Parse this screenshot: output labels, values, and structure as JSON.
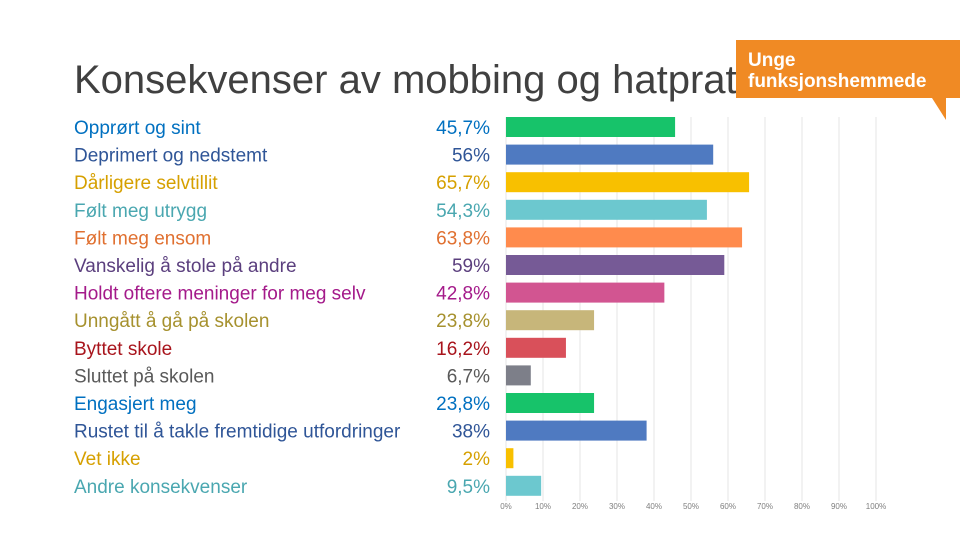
{
  "title": "Konsekvenser av mobbing og hatprat",
  "logo": {
    "line1": "Unge",
    "line2": "funksjonshemmede",
    "color": "#f08a24"
  },
  "chart_data": {
    "type": "bar",
    "orientation": "horizontal",
    "title": "Konsekvenser av mobbing og hatprat",
    "xlim": [
      0,
      100
    ],
    "xticks": [
      "0%",
      "10%",
      "20%",
      "30%",
      "40%",
      "50%",
      "60%",
      "70%",
      "80%",
      "90%",
      "100%"
    ],
    "grid": true,
    "rows": [
      {
        "label": "Opprørt og sint",
        "value": 45.7,
        "display": "45,7%",
        "bar_color": "#17c36a",
        "label_color": "#0070c0"
      },
      {
        "label": "Deprimert og nedstemt",
        "value": 56,
        "display": "56%",
        "bar_color": "#4f7ac1",
        "label_color": "#2f5597"
      },
      {
        "label": "Dårligere selvtillit",
        "value": 65.7,
        "display": "65,7%",
        "bar_color": "#f8c000",
        "label_color": "#d6a000"
      },
      {
        "label": "Følt meg utrygg",
        "value": 54.3,
        "display": "54,3%",
        "bar_color": "#6cc8cf",
        "label_color": "#4aa7b0"
      },
      {
        "label": "Følt meg ensom",
        "value": 63.8,
        "display": "63,8%",
        "bar_color": "#ff8b4d",
        "label_color": "#e07030"
      },
      {
        "label": "Vanskelig å stole på andre",
        "value": 59,
        "display": "59%",
        "bar_color": "#765a96",
        "label_color": "#5b3f7e"
      },
      {
        "label": "Holdt oftere meninger for meg selv",
        "value": 42.8,
        "display": "42,8%",
        "bar_color": "#d25591",
        "label_color": "#a41a8a"
      },
      {
        "label": "Unngått å gå på skolen",
        "value": 23.8,
        "display": "23,8%",
        "bar_color": "#c7b67a",
        "label_color": "#a6912e"
      },
      {
        "label": "Byttet skole",
        "value": 16.2,
        "display": "16,2%",
        "bar_color": "#d9505a",
        "label_color": "#a8141c"
      },
      {
        "label": "Sluttet på skolen",
        "value": 6.7,
        "display": "6,7%",
        "bar_color": "#7d7f89",
        "label_color": "#595959"
      },
      {
        "label": "Engasjert meg",
        "value": 23.8,
        "display": "23,8%",
        "bar_color": "#17c36a",
        "label_color": "#0070c0"
      },
      {
        "label": "Rustet til å takle fremtidige utfordringer",
        "value": 38,
        "display": "38%",
        "bar_color": "#4f7ac1",
        "label_color": "#2f5597"
      },
      {
        "label": "Vet ikke",
        "value": 2,
        "display": "2%",
        "bar_color": "#f8c000",
        "label_color": "#d6a000"
      },
      {
        "label": "Andre konsekvenser",
        "value": 9.5,
        "display": "9,5%",
        "bar_color": "#6cc8cf",
        "label_color": "#4aa7b0"
      }
    ]
  }
}
